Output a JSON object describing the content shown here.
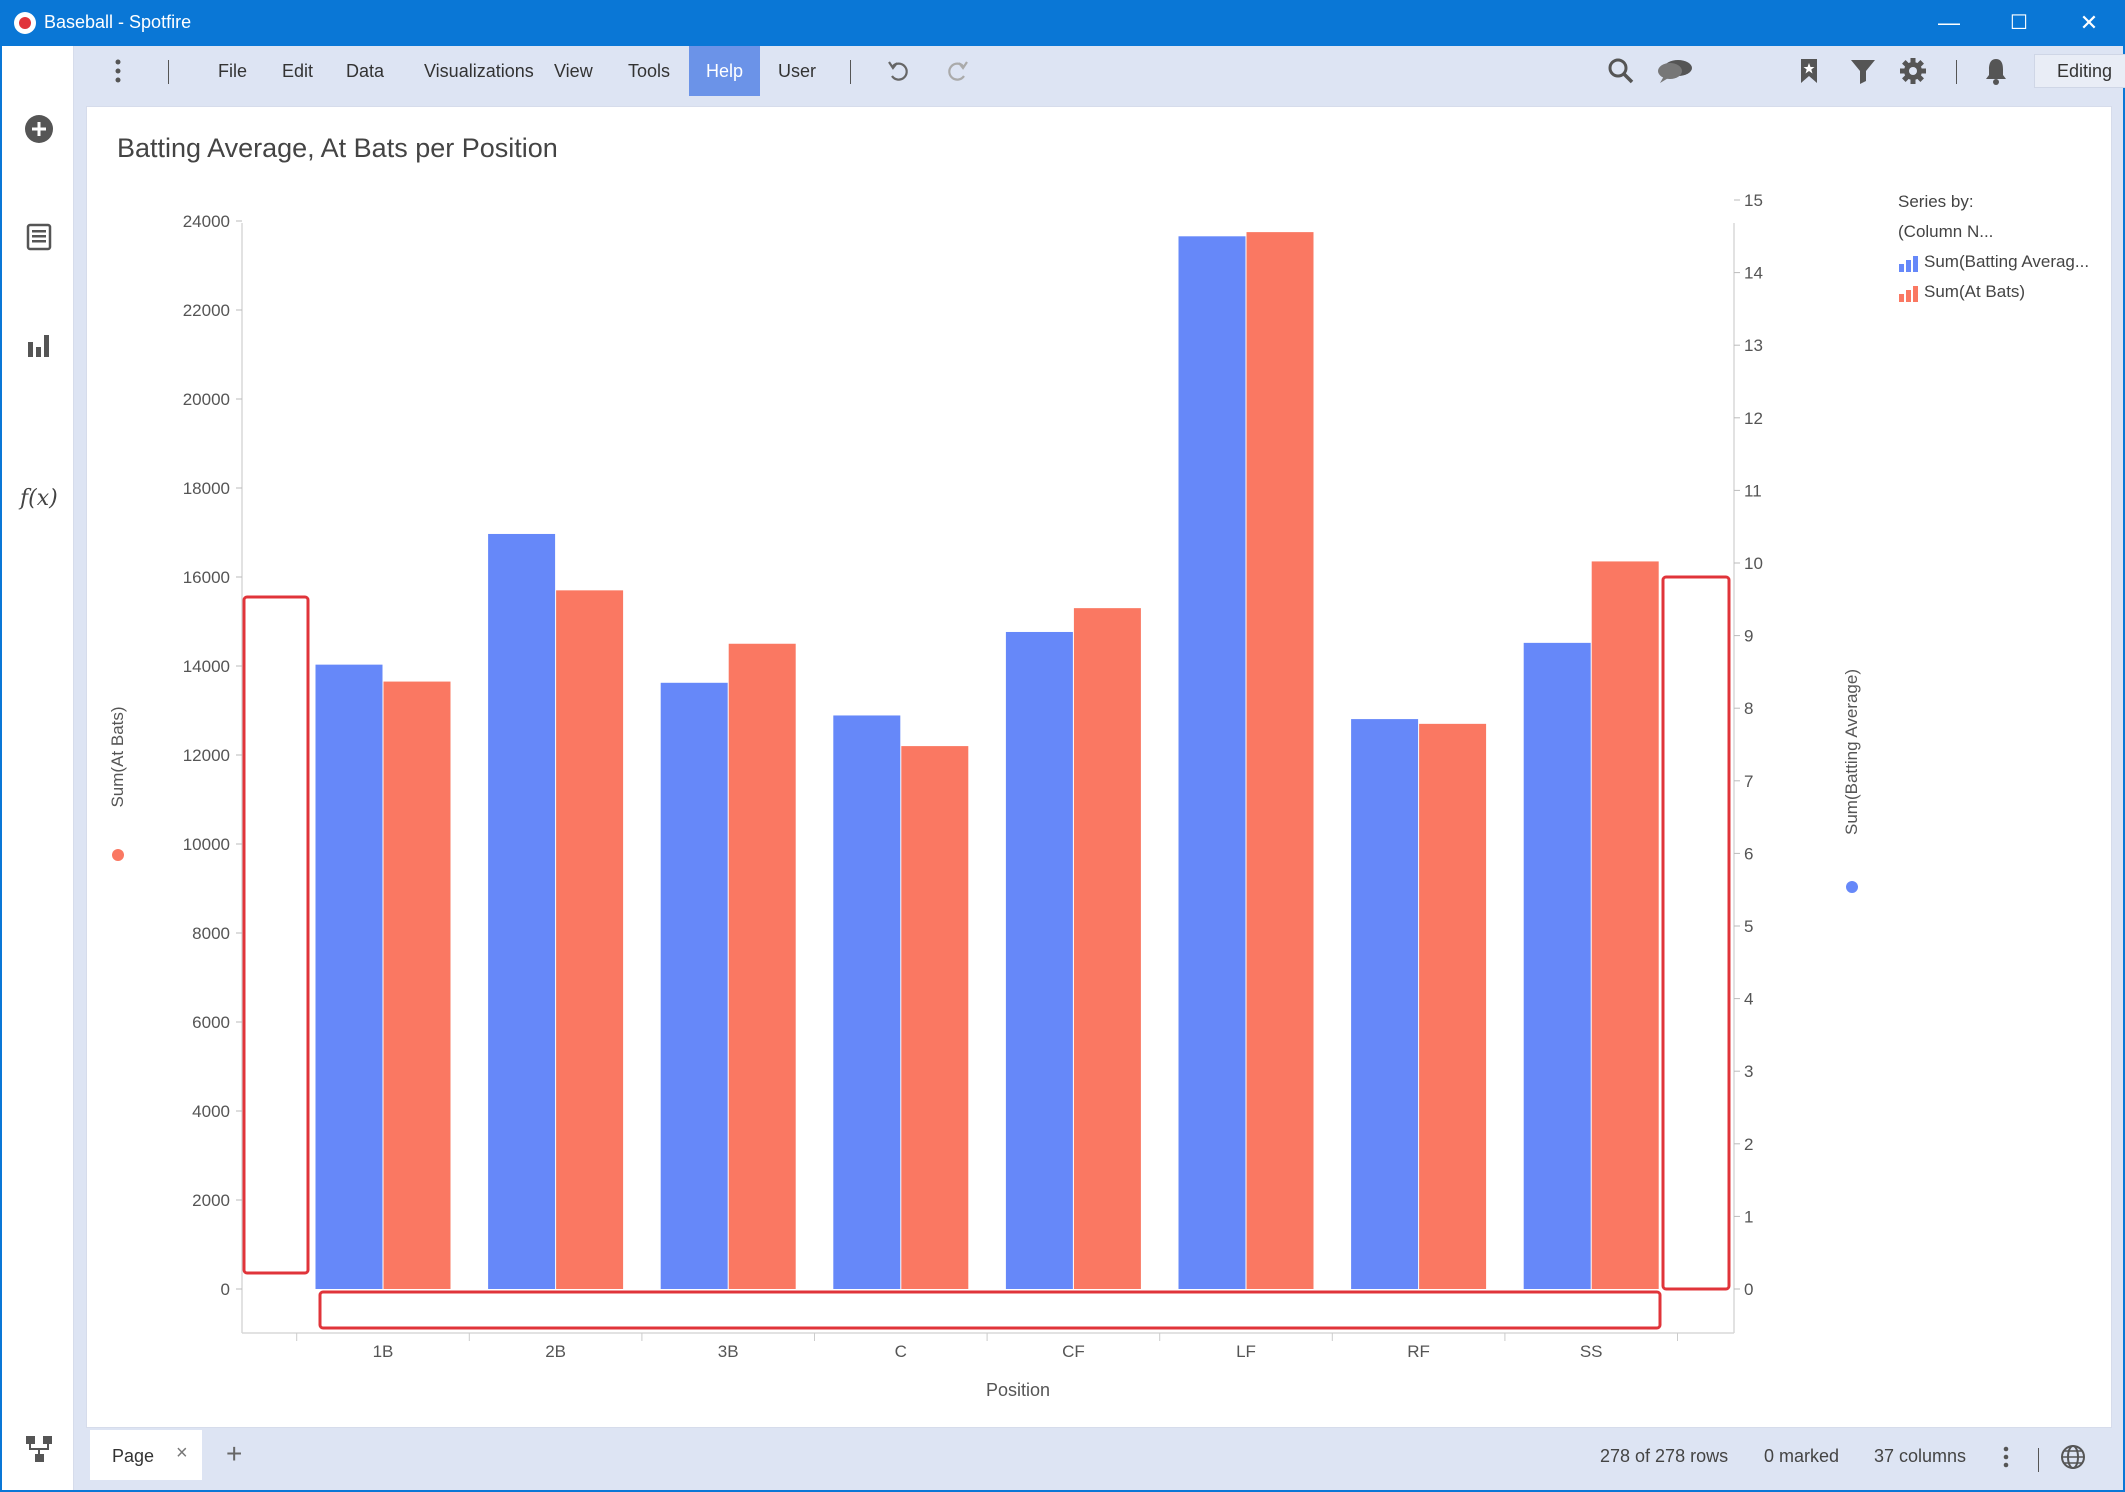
{
  "window": {
    "title": "Baseball - Spotfire",
    "minimize_glyph": "—",
    "maximize_glyph": "☐",
    "close_glyph": "✕"
  },
  "menu": {
    "items": [
      "File",
      "Edit",
      "Data",
      "Visualizations",
      "View",
      "Tools",
      "Help",
      "User"
    ],
    "active": "Help"
  },
  "toolbar": {
    "mode_label": "Editing",
    "icons": [
      "more-vertical-icon",
      "undo-icon",
      "redo-icon",
      "search-icon",
      "comments-icon",
      "bookmark-icon",
      "filter-icon",
      "settings-icon",
      "notifications-icon"
    ]
  },
  "leftrail": {
    "icons": [
      "add-icon",
      "data-table-icon",
      "bar-chart-icon",
      "fx-icon",
      "data-flow-icon"
    ],
    "fx_label": "f(x)"
  },
  "visualization": {
    "title": "Batting Average, At Bats per Position"
  },
  "legend": {
    "header": "Series by:",
    "subheader": "(Column N...",
    "items": [
      {
        "label": "Sum(Batting Averag...",
        "color": "#6688f9"
      },
      {
        "label": "Sum(At Bats)",
        "color": "#fa7862"
      }
    ]
  },
  "colors": {
    "batting_average": "#6688f9",
    "at_bats": "#fa7862",
    "highlight": "#e0343a",
    "titlebar": "#0a77d6",
    "menu_active": "#6b93e8"
  },
  "chart_data": {
    "type": "bar",
    "xlabel": "Position",
    "ylabel_left": "Sum(At Bats)",
    "ylabel_right": "Sum(Batting Average)",
    "categories": [
      "1B",
      "2B",
      "3B",
      "C",
      "CF",
      "LF",
      "RF",
      "SS"
    ],
    "ylim_left": [
      0,
      24000
    ],
    "yticks_left": [
      0,
      2000,
      4000,
      6000,
      8000,
      10000,
      12000,
      14000,
      16000,
      18000,
      20000,
      22000,
      24000
    ],
    "ylim_right": [
      0,
      15
    ],
    "yticks_right": [
      0,
      1,
      2,
      3,
      4,
      5,
      6,
      7,
      8,
      9,
      10,
      11,
      12,
      13,
      14,
      15
    ],
    "series": [
      {
        "name": "Sum(Batting Average)",
        "axis": "right",
        "values": [
          8.6,
          10.4,
          8.35,
          7.9,
          9.05,
          14.5,
          7.85,
          8.9
        ]
      },
      {
        "name": "Sum(At Bats)",
        "axis": "left",
        "values": [
          13650,
          15700,
          14500,
          12200,
          15300,
          23750,
          12700,
          16350
        ]
      }
    ],
    "grid": false,
    "legend": "right"
  },
  "statusbar": {
    "page_tab": "Page",
    "close_glyph": "×",
    "add_glyph": "+",
    "rows": "278 of 278 rows",
    "marked": "0 marked",
    "columns": "37 columns"
  }
}
